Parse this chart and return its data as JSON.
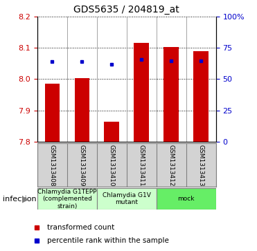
{
  "title": "GDS5635 / 204819_at",
  "samples": [
    "GSM1313408",
    "GSM1313409",
    "GSM1313410",
    "GSM1313411",
    "GSM1313412",
    "GSM1313413"
  ],
  "bar_bottom": 7.8,
  "bar_tops": [
    7.985,
    8.003,
    7.865,
    8.115,
    8.103,
    8.09
  ],
  "percentile_values": [
    8.055,
    8.055,
    8.047,
    8.062,
    8.058,
    8.057
  ],
  "ylim": [
    7.8,
    8.2
  ],
  "yticks_left": [
    7.8,
    7.9,
    8.0,
    8.1,
    8.2
  ],
  "yticks_right_pct": [
    0,
    25,
    50,
    75,
    100
  ],
  "bar_color": "#cc0000",
  "dot_color": "#0000cc",
  "groups": [
    {
      "label": "Chlamydia G1TEPP\n(complemented\nstrain)",
      "start": 0,
      "end": 2,
      "color": "#ccffcc"
    },
    {
      "label": "Chlamydia G1V\nmutant",
      "start": 2,
      "end": 4,
      "color": "#ccffcc"
    },
    {
      "label": "mock",
      "start": 4,
      "end": 6,
      "color": "#66ee66"
    }
  ],
  "infection_label": "infection",
  "legend_items": [
    {
      "color": "#cc0000",
      "label": "transformed count"
    },
    {
      "color": "#0000cc",
      "label": "percentile rank within the sample"
    }
  ],
  "title_fontsize": 10,
  "tick_fontsize": 8,
  "sample_fontsize": 6.5,
  "group_fontsize": 6.5,
  "legend_fontsize": 7.5,
  "infection_fontsize": 8
}
